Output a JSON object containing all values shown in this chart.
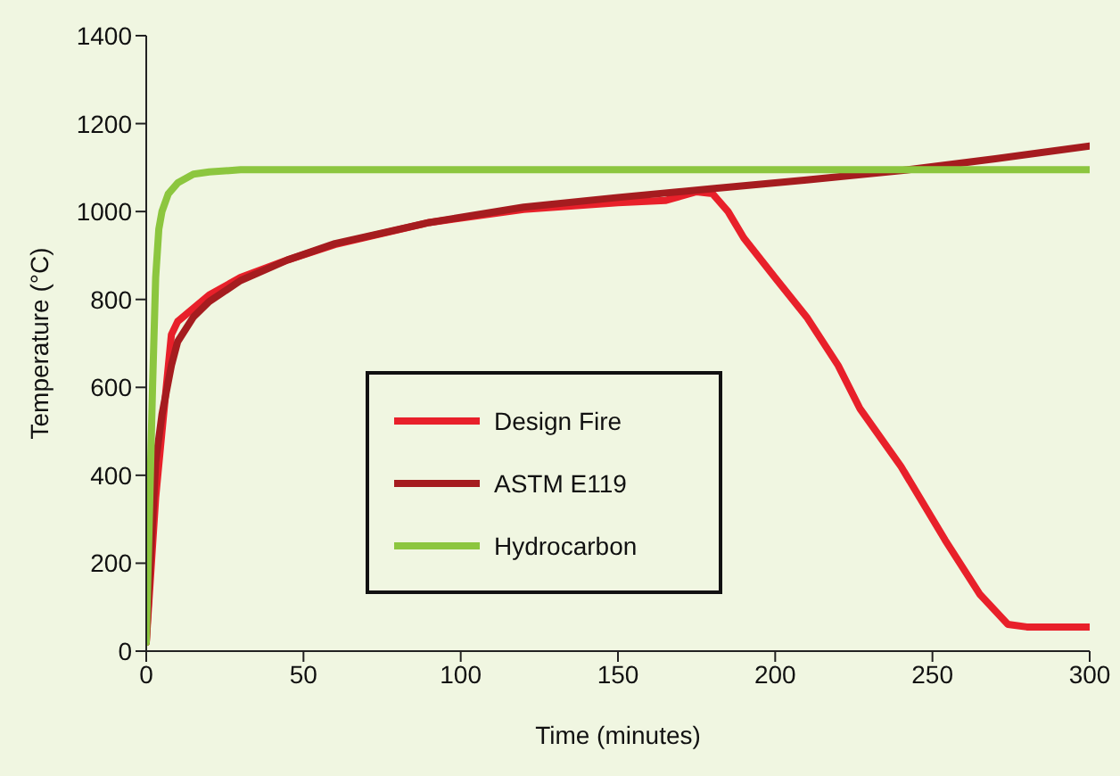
{
  "chart_data": {
    "type": "line",
    "xlabel": "Time (minutes)",
    "ylabel": "Temperature (°C)",
    "xlim": [
      0,
      300
    ],
    "xticks": [
      0,
      50,
      100,
      150,
      200,
      250,
      300
    ],
    "ylim": [
      0,
      1400
    ],
    "yticks": [
      0,
      200,
      400,
      600,
      800,
      1000,
      1200,
      1400
    ],
    "grid": false,
    "legend": "center",
    "marker": "none",
    "line_style": "solid",
    "series": [
      {
        "name": "Design Fire",
        "color": "#e8202a",
        "x": [
          0,
          3,
          5,
          8,
          10,
          15,
          20,
          30,
          45,
          60,
          90,
          120,
          150,
          165,
          170,
          175,
          180,
          185,
          190,
          200,
          210,
          220,
          227,
          240,
          254,
          265,
          274,
          280,
          290,
          300
        ],
        "values": [
          20,
          350,
          500,
          720,
          750,
          780,
          810,
          850,
          890,
          925,
          975,
          1005,
          1020,
          1025,
          1035,
          1045,
          1041,
          1000,
          940,
          849,
          760,
          650,
          551,
          420,
          253,
          130,
          61,
          55,
          55,
          55
        ]
      },
      {
        "name": "ASTM E119",
        "color": "#a51c1f",
        "x": [
          0,
          3,
          5,
          8,
          10,
          15,
          20,
          30,
          45,
          60,
          90,
          120,
          150,
          180,
          210,
          240,
          270,
          300
        ],
        "values": [
          20,
          430,
          538,
          650,
          704,
          760,
          795,
          843,
          890,
          927,
          975,
          1010,
          1032,
          1052,
          1072,
          1093,
          1120,
          1149
        ]
      },
      {
        "name": "Hydrocarbon",
        "color": "#8cc63f",
        "x": [
          0,
          2,
          3,
          4,
          5,
          7,
          10,
          15,
          20,
          30,
          40,
          300
        ],
        "values": [
          20,
          600,
          850,
          960,
          1000,
          1040,
          1065,
          1085,
          1090,
          1095,
          1095,
          1095
        ]
      }
    ]
  }
}
